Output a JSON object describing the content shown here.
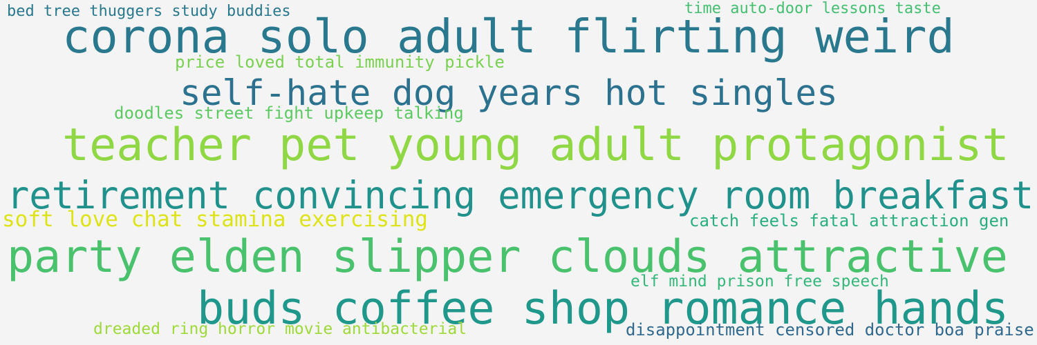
{
  "words": [
    {
      "text": "bed tree thuggers study buddies",
      "color": "#2a788e"
    },
    {
      "text": "time auto-door lessons taste",
      "color": "#44bf70"
    },
    {
      "text": "corona solo adult flirting weird",
      "color": "#2a788e"
    },
    {
      "text": "price loved total immunity pickle",
      "color": "#7ad151"
    },
    {
      "text": "self-hate dog years hot singles",
      "color": "#2c728e"
    },
    {
      "text": "doodles street fight upkeep talking",
      "color": "#5ec962"
    },
    {
      "text": "teacher pet young adult protagonist",
      "color": "#8fd744"
    },
    {
      "text": "retirement convincing emergency room breakfast",
      "color": "#21918c"
    },
    {
      "text": "soft love chat stamina exercising",
      "color": "#dde318"
    },
    {
      "text": "catch feels fatal attraction gen",
      "color": "#29af7f"
    },
    {
      "text": "party elden slipper clouds attractive",
      "color": "#4ac16d"
    },
    {
      "text": "elf mind prison free speech",
      "color": "#35b779"
    },
    {
      "text": "buds coffee shop romance hands",
      "color": "#1f988b"
    },
    {
      "text": "dreaded ring horror movie antibacterial",
      "color": "#9dd93b"
    },
    {
      "text": "disappointment censored doctor boa praise",
      "color": "#31688e"
    }
  ]
}
